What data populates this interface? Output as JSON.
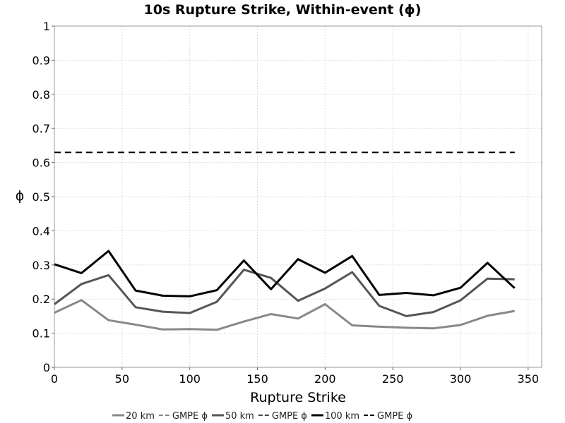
{
  "chart_data": {
    "type": "line",
    "title": "10s Rupture Strike, Within-event (ϕ)",
    "xlabel": "Rupture Strike",
    "ylabel": "ϕ",
    "xlim": [
      0,
      360
    ],
    "ylim": [
      0,
      1
    ],
    "xticks": [
      0,
      50,
      100,
      150,
      200,
      250,
      300,
      350
    ],
    "yticks": [
      0,
      0.1,
      0.2,
      0.3,
      0.4,
      0.5,
      0.6,
      0.7,
      0.8,
      0.9,
      1
    ],
    "grid": true,
    "legend_position": "bottom",
    "x": [
      0,
      20,
      40,
      60,
      80,
      100,
      120,
      140,
      160,
      180,
      200,
      220,
      240,
      260,
      280,
      300,
      320,
      340
    ],
    "series": [
      {
        "name": "20 km",
        "color": "#888888",
        "dash": false,
        "values": [
          0.16,
          0.197,
          0.138,
          0.125,
          0.111,
          0.112,
          0.11,
          0.134,
          0.156,
          0.143,
          0.185,
          0.123,
          0.119,
          0.116,
          0.114,
          0.124,
          0.151,
          0.165
        ]
      },
      {
        "name": "GMPE ϕ",
        "color": "#888888",
        "dash": true,
        "values": [
          0.63,
          0.63,
          0.63,
          0.63,
          0.63,
          0.63,
          0.63,
          0.63,
          0.63,
          0.63,
          0.63,
          0.63,
          0.63,
          0.63,
          0.63,
          0.63,
          0.63,
          0.63
        ]
      },
      {
        "name": "50 km",
        "color": "#555555",
        "dash": false,
        "values": [
          0.185,
          0.244,
          0.27,
          0.176,
          0.163,
          0.159,
          0.192,
          0.286,
          0.262,
          0.195,
          0.231,
          0.279,
          0.18,
          0.15,
          0.162,
          0.196,
          0.26,
          0.258
        ]
      },
      {
        "name": "GMPE ϕ",
        "color": "#444444",
        "dash": true,
        "values": [
          0.63,
          0.63,
          0.63,
          0.63,
          0.63,
          0.63,
          0.63,
          0.63,
          0.63,
          0.63,
          0.63,
          0.63,
          0.63,
          0.63,
          0.63,
          0.63,
          0.63,
          0.63
        ]
      },
      {
        "name": "100 km",
        "color": "#000000",
        "dash": false,
        "values": [
          0.302,
          0.276,
          0.341,
          0.225,
          0.21,
          0.208,
          0.226,
          0.313,
          0.229,
          0.317,
          0.277,
          0.326,
          0.212,
          0.218,
          0.211,
          0.233,
          0.306,
          0.232
        ]
      },
      {
        "name": "GMPE ϕ",
        "color": "#000000",
        "dash": true,
        "values": [
          0.63,
          0.63,
          0.63,
          0.63,
          0.63,
          0.63,
          0.63,
          0.63,
          0.63,
          0.63,
          0.63,
          0.63,
          0.63,
          0.63,
          0.63,
          0.63,
          0.63,
          0.63
        ]
      }
    ]
  }
}
